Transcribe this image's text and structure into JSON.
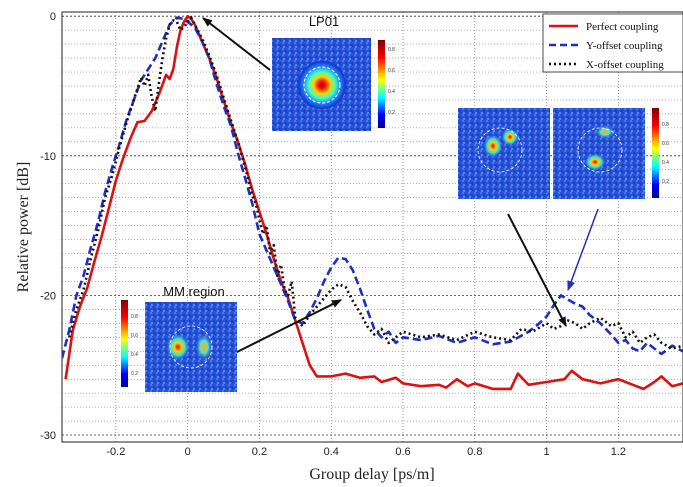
{
  "chart_data": {
    "type": "line",
    "xlabel": "Group delay [ps/m]",
    "ylabel": "Relative power [dB]",
    "xlim": [
      -0.35,
      1.38
    ],
    "ylim": [
      -30.5,
      0.3
    ],
    "grid": true,
    "legend_position": "top-right",
    "x_ticks": [
      -0.2,
      0,
      0.2,
      0.4,
      0.6,
      0.8,
      1,
      1.2
    ],
    "x_tick_labels": [
      "-0.2",
      "0",
      "0.2",
      "0.4",
      "0.6",
      "0.8",
      "1",
      "1.2"
    ],
    "y_ticks": [
      0,
      -10,
      -20,
      -30
    ],
    "y_tick_labels": [
      "0",
      "-10",
      "-20",
      "-30"
    ],
    "series": [
      {
        "name": "Perfect coupling",
        "color": "#dd1111",
        "style": "solid",
        "points": [
          [
            -0.34,
            -26.0
          ],
          [
            -0.32,
            -22.5
          ],
          [
            -0.3,
            -20.8
          ],
          [
            -0.28,
            -19.5
          ],
          [
            -0.26,
            -17.6
          ],
          [
            -0.24,
            -15.8
          ],
          [
            -0.22,
            -13.8
          ],
          [
            -0.2,
            -11.8
          ],
          [
            -0.18,
            -10.2
          ],
          [
            -0.16,
            -8.8
          ],
          [
            -0.14,
            -7.6
          ],
          [
            -0.12,
            -7.5
          ],
          [
            -0.1,
            -6.8
          ],
          [
            -0.08,
            -5.6
          ],
          [
            -0.06,
            -4.2
          ],
          [
            -0.05,
            -4.5
          ],
          [
            -0.04,
            -3.8
          ],
          [
            -0.03,
            -2.2
          ],
          [
            -0.02,
            -1.0
          ],
          [
            -0.01,
            -0.4
          ],
          [
            0.0,
            0.0
          ],
          [
            0.01,
            -0.2
          ],
          [
            0.02,
            -0.6
          ],
          [
            0.04,
            -1.8
          ],
          [
            0.06,
            -3.0
          ],
          [
            0.08,
            -4.4
          ],
          [
            0.1,
            -6.0
          ],
          [
            0.12,
            -7.6
          ],
          [
            0.14,
            -9.0
          ],
          [
            0.16,
            -10.6
          ],
          [
            0.18,
            -12.4
          ],
          [
            0.2,
            -14.0
          ],
          [
            0.22,
            -15.6
          ],
          [
            0.24,
            -17.4
          ],
          [
            0.26,
            -19.0
          ],
          [
            0.28,
            -20.2
          ],
          [
            0.3,
            -21.8
          ],
          [
            0.32,
            -23.4
          ],
          [
            0.34,
            -25.0
          ],
          [
            0.36,
            -25.8
          ],
          [
            0.4,
            -25.8
          ],
          [
            0.44,
            -25.6
          ],
          [
            0.48,
            -25.9
          ],
          [
            0.52,
            -25.8
          ],
          [
            0.54,
            -26.2
          ],
          [
            0.58,
            -25.9
          ],
          [
            0.6,
            -26.3
          ],
          [
            0.65,
            -26.5
          ],
          [
            0.7,
            -26.4
          ],
          [
            0.72,
            -26.6
          ],
          [
            0.75,
            -26.0
          ],
          [
            0.78,
            -26.5
          ],
          [
            0.8,
            -26.3
          ],
          [
            0.85,
            -26.7
          ],
          [
            0.9,
            -26.7
          ],
          [
            0.92,
            -25.6
          ],
          [
            0.95,
            -26.4
          ],
          [
            1.0,
            -26.2
          ],
          [
            1.05,
            -26.0
          ],
          [
            1.07,
            -25.4
          ],
          [
            1.1,
            -26.0
          ],
          [
            1.15,
            -26.3
          ],
          [
            1.2,
            -26.0
          ],
          [
            1.25,
            -26.5
          ],
          [
            1.27,
            -26.7
          ],
          [
            1.3,
            -26.2
          ],
          [
            1.32,
            -25.8
          ],
          [
            1.35,
            -26.5
          ],
          [
            1.38,
            -26.3
          ]
        ]
      },
      {
        "name": "Y-offset coupling",
        "color": "#1f2fbf",
        "style": "dashed",
        "points": [
          [
            -0.35,
            -24.5
          ],
          [
            -0.33,
            -22.5
          ],
          [
            -0.31,
            -20.0
          ],
          [
            -0.29,
            -18.6
          ],
          [
            -0.27,
            -16.6
          ],
          [
            -0.25,
            -14.8
          ],
          [
            -0.23,
            -12.6
          ],
          [
            -0.21,
            -10.8
          ],
          [
            -0.19,
            -9.2
          ],
          [
            -0.17,
            -7.4
          ],
          [
            -0.15,
            -6.0
          ],
          [
            -0.13,
            -4.6
          ],
          [
            -0.11,
            -3.8
          ],
          [
            -0.09,
            -3.0
          ],
          [
            -0.07,
            -1.8
          ],
          [
            -0.05,
            -0.6
          ],
          [
            -0.03,
            -0.1
          ],
          [
            -0.01,
            -0.2
          ],
          [
            0.0,
            -0.4
          ],
          [
            0.02,
            -0.8
          ],
          [
            0.04,
            -1.8
          ],
          [
            0.06,
            -3.0
          ],
          [
            0.08,
            -4.8
          ],
          [
            0.1,
            -6.4
          ],
          [
            0.12,
            -7.8
          ],
          [
            0.14,
            -9.8
          ],
          [
            0.16,
            -11.6
          ],
          [
            0.18,
            -13.4
          ],
          [
            0.2,
            -15.6
          ],
          [
            0.22,
            -16.8
          ],
          [
            0.24,
            -18.0
          ],
          [
            0.26,
            -19.2
          ],
          [
            0.28,
            -20.4
          ],
          [
            0.3,
            -21.8
          ],
          [
            0.32,
            -22.0
          ],
          [
            0.34,
            -21.2
          ],
          [
            0.36,
            -20.2
          ],
          [
            0.38,
            -19.0
          ],
          [
            0.4,
            -18.0
          ],
          [
            0.42,
            -17.3
          ],
          [
            0.44,
            -17.4
          ],
          [
            0.46,
            -18.2
          ],
          [
            0.48,
            -19.5
          ],
          [
            0.5,
            -21.0
          ],
          [
            0.52,
            -22.4
          ],
          [
            0.54,
            -23.0
          ],
          [
            0.56,
            -22.6
          ],
          [
            0.58,
            -23.4
          ],
          [
            0.6,
            -23.0
          ],
          [
            0.65,
            -23.2
          ],
          [
            0.7,
            -22.9
          ],
          [
            0.75,
            -23.4
          ],
          [
            0.8,
            -23.0
          ],
          [
            0.85,
            -23.5
          ],
          [
            0.9,
            -23.3
          ],
          [
            0.95,
            -22.6
          ],
          [
            0.98,
            -22.0
          ],
          [
            1.0,
            -21.5
          ],
          [
            1.02,
            -20.7
          ],
          [
            1.04,
            -20.0
          ],
          [
            1.06,
            -20.3
          ],
          [
            1.08,
            -20.6
          ],
          [
            1.1,
            -20.8
          ],
          [
            1.12,
            -21.4
          ],
          [
            1.15,
            -22.0
          ],
          [
            1.18,
            -22.8
          ],
          [
            1.2,
            -23.4
          ],
          [
            1.22,
            -23.2
          ],
          [
            1.24,
            -23.8
          ],
          [
            1.26,
            -24.0
          ],
          [
            1.28,
            -23.4
          ],
          [
            1.3,
            -23.8
          ],
          [
            1.32,
            -24.2
          ],
          [
            1.35,
            -23.6
          ],
          [
            1.38,
            -24.0
          ]
        ]
      },
      {
        "name": "X-offset coupling",
        "color": "#111111",
        "style": "dotted",
        "points": [
          [
            -0.33,
            -23.0
          ],
          [
            -0.31,
            -21.0
          ],
          [
            -0.29,
            -19.6
          ],
          [
            -0.27,
            -17.4
          ],
          [
            -0.25,
            -15.4
          ],
          [
            -0.23,
            -13.0
          ],
          [
            -0.21,
            -11.4
          ],
          [
            -0.19,
            -9.4
          ],
          [
            -0.17,
            -7.6
          ],
          [
            -0.15,
            -6.0
          ],
          [
            -0.13,
            -4.4
          ],
          [
            -0.12,
            -5.0
          ],
          [
            -0.11,
            -4.2
          ],
          [
            -0.1,
            -5.8
          ],
          [
            -0.09,
            -6.8
          ],
          [
            -0.08,
            -4.8
          ],
          [
            -0.07,
            -3.0
          ],
          [
            -0.06,
            -1.6
          ],
          [
            -0.05,
            -0.6
          ],
          [
            -0.04,
            -0.3
          ],
          [
            -0.03,
            -0.4
          ],
          [
            -0.02,
            -1.0
          ],
          [
            -0.01,
            -0.8
          ],
          [
            0.0,
            -0.4
          ],
          [
            0.01,
            -0.1
          ],
          [
            0.02,
            -0.6
          ],
          [
            0.04,
            -1.6
          ],
          [
            0.06,
            -2.8
          ],
          [
            0.08,
            -4.2
          ],
          [
            0.1,
            -5.8
          ],
          [
            0.12,
            -7.4
          ],
          [
            0.14,
            -9.0
          ],
          [
            0.16,
            -10.8
          ],
          [
            0.18,
            -12.8
          ],
          [
            0.19,
            -13.4
          ],
          [
            0.2,
            -14.6
          ],
          [
            0.21,
            -15.6
          ],
          [
            0.22,
            -15.0
          ],
          [
            0.23,
            -17.0
          ],
          [
            0.24,
            -16.4
          ],
          [
            0.25,
            -18.6
          ],
          [
            0.26,
            -17.8
          ],
          [
            0.27,
            -19.6
          ],
          [
            0.28,
            -20.0
          ],
          [
            0.29,
            -19.0
          ],
          [
            0.3,
            -21.6
          ],
          [
            0.32,
            -22.2
          ],
          [
            0.34,
            -21.4
          ],
          [
            0.36,
            -20.8
          ],
          [
            0.38,
            -20.2
          ],
          [
            0.4,
            -19.6
          ],
          [
            0.42,
            -19.2
          ],
          [
            0.44,
            -19.4
          ],
          [
            0.46,
            -20.4
          ],
          [
            0.48,
            -21.2
          ],
          [
            0.5,
            -22.2
          ],
          [
            0.52,
            -22.8
          ],
          [
            0.54,
            -22.4
          ],
          [
            0.56,
            -23.4
          ],
          [
            0.58,
            -23.0
          ],
          [
            0.6,
            -22.6
          ],
          [
            0.65,
            -23.0
          ],
          [
            0.7,
            -22.8
          ],
          [
            0.75,
            -23.2
          ],
          [
            0.8,
            -22.6
          ],
          [
            0.85,
            -23.0
          ],
          [
            0.9,
            -23.2
          ],
          [
            0.93,
            -22.4
          ],
          [
            0.96,
            -22.6
          ],
          [
            1.0,
            -22.0
          ],
          [
            1.02,
            -22.4
          ],
          [
            1.04,
            -22.2
          ],
          [
            1.06,
            -21.8
          ],
          [
            1.08,
            -22.0
          ],
          [
            1.1,
            -22.4
          ],
          [
            1.12,
            -22.0
          ],
          [
            1.15,
            -21.6
          ],
          [
            1.18,
            -22.2
          ],
          [
            1.2,
            -22.0
          ],
          [
            1.22,
            -23.0
          ],
          [
            1.24,
            -22.6
          ],
          [
            1.26,
            -23.4
          ],
          [
            1.28,
            -23.0
          ],
          [
            1.3,
            -22.8
          ],
          [
            1.32,
            -23.4
          ],
          [
            1.35,
            -23.8
          ],
          [
            1.38,
            -23.6
          ]
        ]
      }
    ],
    "insets": [
      {
        "title": "LP01"
      },
      {
        "title": "MM region"
      },
      {
        "title": ""
      }
    ]
  },
  "colorbar_labels": [
    "0.8",
    "0.6",
    "0.4",
    "0.2"
  ]
}
